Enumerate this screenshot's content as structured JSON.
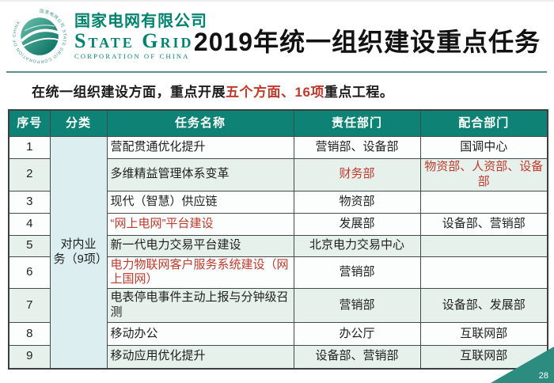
{
  "brand": {
    "name_cn": "国家电网有限公司",
    "name_en": "State Grid",
    "name_sub": "CORPORATION OF CHINA"
  },
  "title": "2019年统一组织建设重点任务",
  "intro": {
    "prefix": "在统一组织建设方面，重点开展",
    "highlight": "五个方面、16项",
    "suffix": "重点工程。"
  },
  "table": {
    "headers": [
      "序号",
      "分类",
      "任务名称",
      "责任部门",
      "配合部门"
    ],
    "category": {
      "line1": "对内业",
      "line2": "务（9项）",
      "full": "对内业务（9项）"
    },
    "rows": [
      {
        "no": "1",
        "task": "营配贯通优化提升",
        "resp": "营销部、设备部",
        "coop": "国调中心"
      },
      {
        "no": "2",
        "task": "多维精益管理体系变革",
        "resp": "财务部",
        "resp_red": true,
        "coop": "物资部、人资部、设备部",
        "coop_red": true
      },
      {
        "no": "3",
        "task": "现代（智慧）供应链",
        "resp": "物资部",
        "coop": ""
      },
      {
        "no": "4",
        "task": "“网上电网”平台建设",
        "task_red": true,
        "resp": "发展部",
        "coop": "设备部、营销部"
      },
      {
        "no": "5",
        "task": "新一代电力交易平台建设",
        "resp": "北京电力交易中心",
        "coop": ""
      },
      {
        "no": "6",
        "task": "电力物联网客户服务系统建设（网上国网）",
        "task_red": true,
        "resp": "营销部",
        "coop": ""
      },
      {
        "no": "7",
        "task": "电表停电事件主动上报与分钟级召测",
        "resp": "营销部",
        "coop": "设备部、发展部"
      },
      {
        "no": "8",
        "task": "移动办公",
        "resp": "办公厅",
        "coop": "互联网部"
      },
      {
        "no": "9",
        "task": "移动应用优化提升",
        "resp": "设备部、营销部",
        "coop": "互联网部"
      }
    ]
  },
  "page": {
    "number": "28"
  },
  "colors": {
    "teal_header": "#0e8274",
    "brand_teal": "#00836f",
    "red": "#c0392b",
    "category_bg": "#dceef0",
    "divider": "#5e8f90",
    "corner_teal": "#2c8c80",
    "globe_light": "#58b4a1",
    "globe_dark": "#006a5c",
    "row_bgs": [
      "#fcfefd",
      "#e7f1ec",
      "#fcfefd",
      "#fcfefd",
      "#e7f1ec",
      "#fcfefd",
      "#e7f1ec",
      "#fcfefd",
      "#e7f1ec"
    ]
  }
}
